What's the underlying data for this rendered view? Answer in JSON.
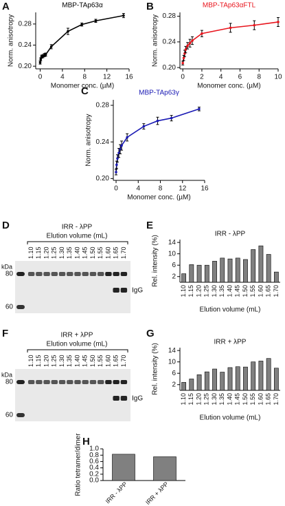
{
  "chart_data": [
    {
      "type": "line",
      "panel": "A",
      "title": "MBP-TAp63α",
      "xlabel": "Monomer conc. (µM)",
      "ylabel": "Norm. anisotropy",
      "x": [
        0,
        0.1,
        0.25,
        0.5,
        0.75,
        1,
        2,
        5,
        7.5,
        10,
        15
      ],
      "series": [
        {
          "color": "#000000",
          "values": [
            0.207,
            0.213,
            0.218,
            0.219,
            0.221,
            0.222,
            0.237,
            0.266,
            0.279,
            0.286,
            0.296
          ],
          "errors": [
            0.003,
            0.003,
            0.003,
            0.003,
            0.003,
            0.003,
            0.004,
            0.006,
            0.003,
            0.003,
            0.004
          ]
        }
      ],
      "xlim": [
        -0.8,
        16
      ],
      "ylim": [
        0.195,
        0.302
      ],
      "xticks": [
        0,
        4,
        8,
        12,
        16
      ],
      "yticks": [
        {
          "value": 0.2,
          "label": "0.20"
        },
        0.24,
        0.28
      ]
    },
    {
      "type": "line",
      "panel": "B",
      "title": "MBP-TAp63αFTL",
      "xlabel": "Monomer conc. (µM)",
      "ylabel": "Norm. anisotropy",
      "x": [
        0,
        0.1,
        0.2,
        0.3,
        0.5,
        0.75,
        1,
        2,
        5,
        7.5,
        10
      ],
      "series": [
        {
          "color": "#e8141c",
          "values": [
            0.207,
            0.215,
            0.222,
            0.228,
            0.234,
            0.238,
            0.242,
            0.253,
            0.262,
            0.266,
            0.271
          ],
          "errors": [
            0.003,
            0.004,
            0.005,
            0.005,
            0.005,
            0.006,
            0.006,
            0.005,
            0.007,
            0.007,
            0.007
          ]
        }
      ],
      "xlim": [
        -0.3,
        10
      ],
      "ylim": [
        0.198,
        0.286
      ],
      "xticks": [
        0,
        2,
        4,
        6,
        8,
        10
      ],
      "yticks": [
        {
          "value": 0.2,
          "label": "0.20"
        },
        0.24,
        0.28
      ]
    },
    {
      "type": "line",
      "panel": "C",
      "title": "MBP-TAp63γ",
      "xlabel": "Monomer conc. (µM)",
      "ylabel": "Norm. anisotropy",
      "x": [
        0,
        0.1,
        0.25,
        0.5,
        0.75,
        1,
        2,
        5,
        7.5,
        10,
        15
      ],
      "series": [
        {
          "color": "#1a1ab4",
          "values": [
            0.207,
            0.215,
            0.222,
            0.228,
            0.232,
            0.236,
            0.245,
            0.257,
            0.263,
            0.266,
            0.276
          ],
          "errors": [
            0.003,
            0.004,
            0.004,
            0.005,
            0.005,
            0.005,
            0.004,
            0.003,
            0.004,
            0.003,
            0.002
          ]
        }
      ],
      "xlim": [
        -0.5,
        16
      ],
      "ylim": [
        0.198,
        0.286
      ],
      "xticks": [
        0,
        4,
        8,
        12,
        16
      ],
      "yticks": [
        {
          "value": 0.2,
          "label": "0.20"
        },
        0.24,
        0.28
      ]
    },
    {
      "type": "bar",
      "panel": "E",
      "title": "IRR - λPP",
      "xlabel": "Elution volume (mL)",
      "ylabel": "Rel. intensity (%)",
      "categories": [
        "1.10",
        "1.15",
        "1.20",
        "1.25",
        "1.30",
        "1.35",
        "1.40",
        "1.45",
        "1.50",
        "1.55",
        "1.60",
        "1.65",
        "1.70"
      ],
      "values": [
        3,
        6.2,
        6,
        6,
        7.4,
        8.5,
        8.2,
        8.5,
        8,
        11.5,
        12.8,
        9.8,
        3.6
      ],
      "color": "#808080",
      "ylim": [
        0,
        15
      ],
      "yticks": [
        2,
        6,
        10,
        14
      ]
    },
    {
      "type": "bar",
      "panel": "G",
      "title": "IRR + λPP",
      "xlabel": "Elution volume (mL)",
      "ylabel": "Rel. intensity (%)",
      "categories": [
        "1.10",
        "1.15",
        "1.20",
        "1.25",
        "1.30",
        "1.35",
        "1.40",
        "1.45",
        "1.50",
        "1.55",
        "1.60",
        "1.65",
        "1.70"
      ],
      "values": [
        2.8,
        4,
        5.5,
        6.5,
        7.5,
        6.4,
        8,
        8.3,
        8.2,
        10,
        10.3,
        11.2,
        7.8
      ],
      "color": "#808080",
      "ylim": [
        0,
        15
      ],
      "yticks": [
        2,
        6,
        10,
        14
      ]
    },
    {
      "type": "bar",
      "panel": "H",
      "ylabel": "Ratio tetramer/dimer",
      "categories": [
        "IRR - λPP",
        "IRR + λPP"
      ],
      "values": [
        0.83,
        0.75
      ],
      "color": "#808080",
      "ylim": [
        0,
        1
      ],
      "yticks": [
        {
          "value": 0,
          "label": "0.0"
        },
        0.2,
        0.4,
        0.6,
        0.8,
        {
          "value": 1,
          "label": "1.0"
        }
      ]
    }
  ],
  "gels": [
    {
      "panel": "D",
      "title": "IRR - λPP",
      "subtitle": "Elution volume (mL)",
      "lanes": [
        "1.10",
        "1.15",
        "1.20",
        "1.25",
        "1.30",
        "1.35",
        "1.40",
        "1.45",
        "1.50",
        "1.55",
        "1.60",
        "1.65",
        "1.70"
      ],
      "unit": "kDa",
      "markers": [
        80,
        60
      ],
      "band": "IgG"
    },
    {
      "panel": "F",
      "title": "IRR + λPP",
      "subtitle": "Elution volume (mL)",
      "lanes": [
        "1.10",
        "1.15",
        "1.20",
        "1.25",
        "1.30",
        "1.35",
        "1.40",
        "1.45",
        "1.50",
        "1.55",
        "1.60",
        "1.65",
        "1.70"
      ],
      "unit": "kDa",
      "markers": [
        80,
        60
      ],
      "band": "IgG"
    }
  ]
}
